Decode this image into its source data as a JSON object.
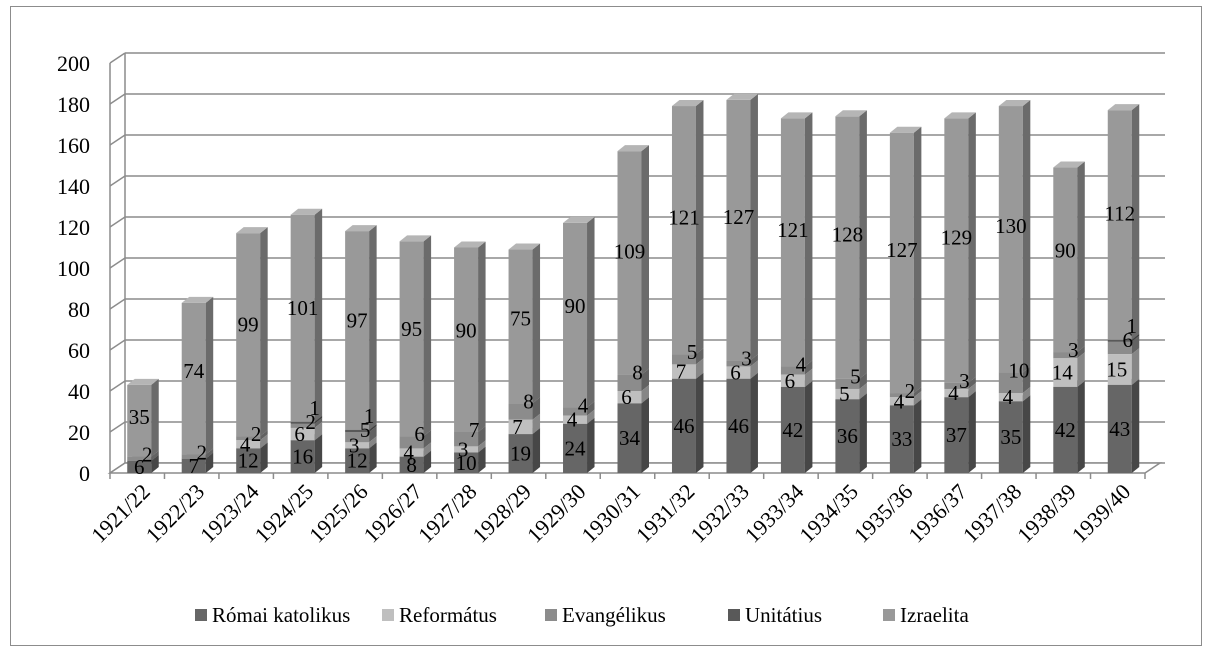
{
  "chart_data": {
    "type": "bar",
    "stacked": true,
    "three_d": true,
    "categories": [
      "1921/22",
      "1922/23",
      "1923/24",
      "1924/25",
      "1925/26",
      "1926/27",
      "1927/28",
      "1928/29",
      "1929/30",
      "1930/31",
      "1931/32",
      "1932/33",
      "1933/34",
      "1934/35",
      "1935/36",
      "1936/37",
      "1937/38",
      "1938/39",
      "1939/40"
    ],
    "series": [
      {
        "name": "Római katolikus",
        "color": "#666666",
        "values": [
          6,
          7,
          12,
          16,
          12,
          8,
          10,
          19,
          24,
          34,
          46,
          46,
          42,
          36,
          33,
          37,
          35,
          42,
          43
        ]
      },
      {
        "name": "Református",
        "color": "#bfbfbf",
        "values": [
          null,
          null,
          4,
          6,
          3,
          4,
          3,
          7,
          4,
          6,
          7,
          6,
          6,
          5,
          4,
          4,
          4,
          14,
          15
        ]
      },
      {
        "name": "Evangélikus",
        "color": "#8c8c8c",
        "values": [
          2,
          2,
          2,
          2,
          5,
          6,
          7,
          8,
          4,
          8,
          5,
          3,
          4,
          5,
          2,
          3,
          10,
          3,
          6
        ]
      },
      {
        "name": "Unitátius",
        "color": "#595959",
        "values": [
          null,
          null,
          null,
          1,
          1,
          null,
          null,
          null,
          null,
          null,
          null,
          null,
          null,
          null,
          null,
          null,
          null,
          null,
          1
        ]
      },
      {
        "name": "Izraelita",
        "color": "#999999",
        "values": [
          35,
          74,
          99,
          101,
          97,
          95,
          90,
          75,
          90,
          109,
          121,
          127,
          121,
          128,
          127,
          129,
          130,
          90,
          112
        ]
      }
    ],
    "label_texts": {
      "s0": [
        "6",
        "7",
        "12",
        "16",
        "12",
        "8",
        "10",
        "19",
        "24",
        "34",
        "46",
        "46",
        "42",
        "36",
        "33",
        "37",
        "35",
        "42",
        "43"
      ],
      "s1": [
        "",
        "",
        "4",
        "6",
        "3",
        "4",
        "3",
        "7",
        "4",
        "6",
        "7",
        "6",
        "6",
        "5",
        "4",
        "4",
        "4",
        "14",
        "15"
      ],
      "s2": [
        "2",
        "2",
        "2",
        "2",
        "5",
        "6",
        "7",
        "8",
        "4",
        "8",
        "5",
        "3",
        "4",
        "5",
        "2",
        "3",
        "10",
        "3",
        "6"
      ],
      "s3": [
        "",
        "",
        "",
        "1",
        "1",
        "",
        "",
        "",
        "",
        "",
        "",
        "",
        "",
        "",
        "",
        "",
        "",
        "",
        "1"
      ],
      "s4": [
        "35",
        "74",
        "99",
        "101",
        "97",
        "95",
        "90",
        "75",
        "90",
        "109",
        "121",
        "127",
        "121",
        "128",
        "127",
        "129",
        "130",
        "90",
        "112"
      ]
    },
    "y_ticks": [
      "0",
      "20",
      "40",
      "60",
      "80",
      "100",
      "120",
      "140",
      "160",
      "180",
      "200"
    ],
    "ylim": [
      0,
      200
    ],
    "grid": true,
    "legend_position": "bottom"
  }
}
